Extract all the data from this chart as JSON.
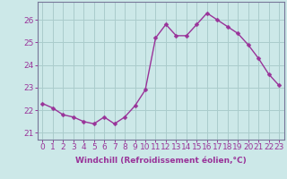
{
  "x": [
    0,
    1,
    2,
    3,
    4,
    5,
    6,
    7,
    8,
    9,
    10,
    11,
    12,
    13,
    14,
    15,
    16,
    17,
    18,
    19,
    20,
    21,
    22,
    23
  ],
  "y": [
    22.3,
    22.1,
    21.8,
    21.7,
    21.5,
    21.4,
    21.7,
    21.4,
    21.7,
    22.2,
    22.9,
    25.2,
    25.8,
    25.3,
    25.3,
    25.8,
    26.3,
    26.0,
    25.7,
    25.4,
    24.9,
    24.3,
    23.6,
    23.1
  ],
  "line_color": "#993399",
  "marker": "D",
  "markersize": 2.5,
  "linewidth": 1.0,
  "bg_color": "#cce8e8",
  "grid_color": "#aacccc",
  "xlabel": "Windchill (Refroidissement éolien,°C)",
  "xlabel_fontsize": 6.5,
  "ylabel_ticks": [
    21,
    22,
    23,
    24,
    25,
    26
  ],
  "xlim": [
    -0.5,
    23.5
  ],
  "ylim": [
    20.7,
    26.8
  ],
  "tick_fontsize": 6.5,
  "tick_color": "#993399",
  "axis_color": "#993399",
  "spine_color": "#777799"
}
